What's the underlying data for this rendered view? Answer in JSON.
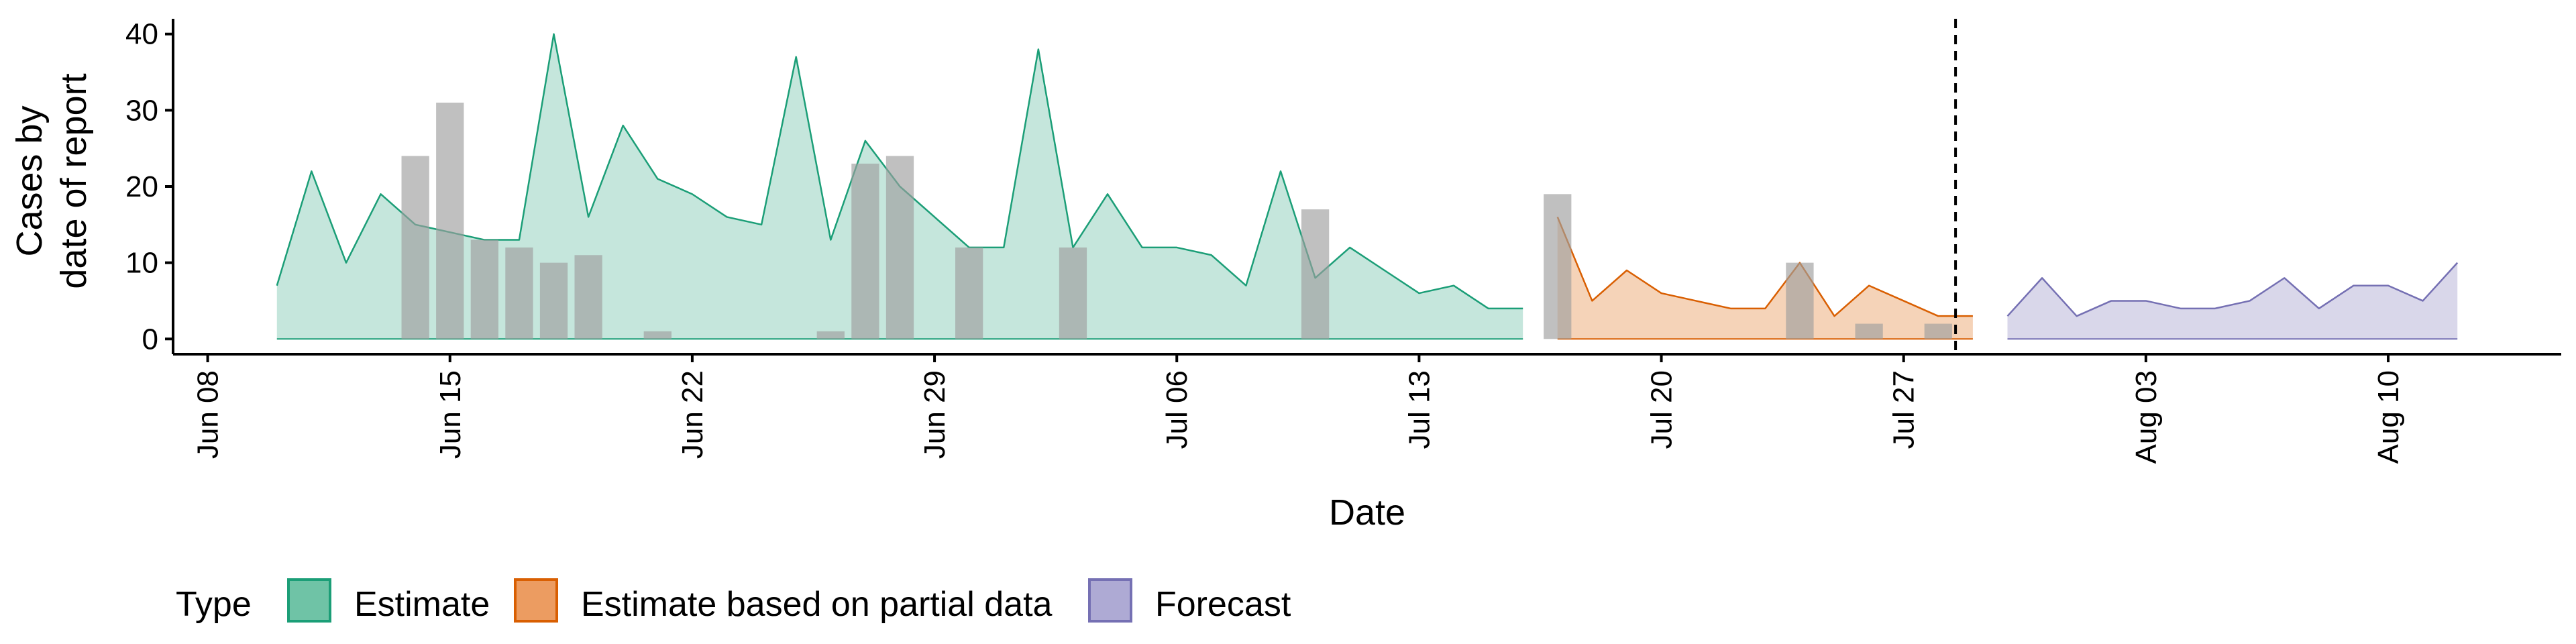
{
  "chart_data": {
    "type": "area",
    "xlabel": "Date",
    "ylabel_lines": [
      "Cases by",
      "date of report"
    ],
    "y_ticks": [
      0,
      10,
      20,
      30,
      40
    ],
    "ylim": [
      -2,
      42
    ],
    "xlim": [
      "2020-06-07",
      "2020-08-15"
    ],
    "x_ticks": [
      {
        "date": "2020-06-08",
        "label": "Jun 08"
      },
      {
        "date": "2020-06-15",
        "label": "Jun 15"
      },
      {
        "date": "2020-06-22",
        "label": "Jun 22"
      },
      {
        "date": "2020-06-29",
        "label": "Jun 29"
      },
      {
        "date": "2020-07-06",
        "label": "Jul 06"
      },
      {
        "date": "2020-07-13",
        "label": "Jul 13"
      },
      {
        "date": "2020-07-20",
        "label": "Jul 20"
      },
      {
        "date": "2020-07-27",
        "label": "Jul 27"
      },
      {
        "date": "2020-08-03",
        "label": "Aug 03"
      },
      {
        "date": "2020-08-10",
        "label": "Aug 10"
      }
    ],
    "forecast_start_line": "2020-07-28T12:00",
    "grid": false,
    "legend_position": "bottom-left",
    "legend_title": "Type",
    "series": [
      {
        "name": "Estimate",
        "color": "#1b9e77",
        "fill": "#c5e6dc",
        "x": [
          "2020-06-10",
          "2020-06-11",
          "2020-06-12",
          "2020-06-13",
          "2020-06-14",
          "2020-06-15",
          "2020-06-16",
          "2020-06-17",
          "2020-06-18",
          "2020-06-19",
          "2020-06-20",
          "2020-06-21",
          "2020-06-22",
          "2020-06-23",
          "2020-06-24",
          "2020-06-25",
          "2020-06-26",
          "2020-06-27",
          "2020-06-28",
          "2020-06-29",
          "2020-06-30",
          "2020-07-01",
          "2020-07-02",
          "2020-07-03",
          "2020-07-04",
          "2020-07-05",
          "2020-07-06",
          "2020-07-07",
          "2020-07-08",
          "2020-07-09",
          "2020-07-10",
          "2020-07-11",
          "2020-07-12",
          "2020-07-13",
          "2020-07-14",
          "2020-07-15",
          "2020-07-16"
        ],
        "values": [
          7,
          22,
          10,
          19,
          15,
          14,
          13,
          13,
          40,
          16,
          28,
          21,
          19,
          16,
          15,
          37,
          13,
          26,
          20,
          16,
          12,
          12,
          38,
          12,
          19,
          12,
          12,
          11,
          7,
          22,
          8,
          12,
          9,
          6,
          7,
          4,
          4
        ]
      },
      {
        "name": "Estimate based on partial data",
        "color": "#d95f02",
        "fill": "#f5d3b8",
        "x": [
          "2020-07-17",
          "2020-07-18",
          "2020-07-19",
          "2020-07-20",
          "2020-07-21",
          "2020-07-22",
          "2020-07-23",
          "2020-07-24",
          "2020-07-25",
          "2020-07-26",
          "2020-07-27",
          "2020-07-28",
          "2020-07-29"
        ],
        "values": [
          16,
          5,
          9,
          6,
          5,
          4,
          4,
          10,
          3,
          7,
          5,
          3,
          3
        ]
      },
      {
        "name": "Forecast",
        "color": "#7570b3",
        "fill": "#d9d7ea",
        "x": [
          "2020-07-30",
          "2020-07-31",
          "2020-08-01",
          "2020-08-02",
          "2020-08-03",
          "2020-08-04",
          "2020-08-05",
          "2020-08-06",
          "2020-08-07",
          "2020-08-08",
          "2020-08-09",
          "2020-08-10",
          "2020-08-11",
          "2020-08-12"
        ],
        "values": [
          3,
          8,
          3,
          5,
          5,
          4,
          4,
          5,
          8,
          4,
          7,
          7,
          5,
          10
        ]
      }
    ],
    "reported_cases": {
      "color": "#9e9e9e",
      "x": [
        "2020-06-14",
        "2020-06-15",
        "2020-06-16",
        "2020-06-17",
        "2020-06-18",
        "2020-06-19",
        "2020-06-21",
        "2020-06-26",
        "2020-06-27",
        "2020-06-28",
        "2020-06-30",
        "2020-07-03",
        "2020-07-10",
        "2020-07-17",
        "2020-07-24",
        "2020-07-26",
        "2020-07-28"
      ],
      "values": [
        24,
        31,
        13,
        12,
        10,
        11,
        1,
        1,
        23,
        24,
        12,
        12,
        17,
        19,
        10,
        2,
        2
      ]
    }
  }
}
